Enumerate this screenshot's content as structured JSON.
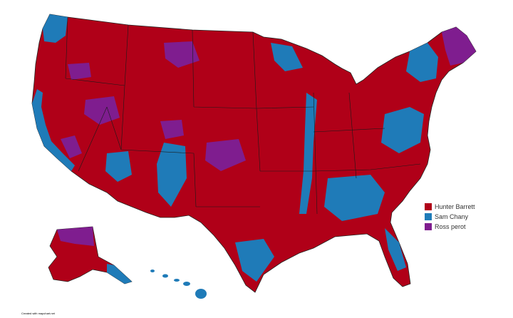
{
  "legend": {
    "items": [
      {
        "label": "Hunter Barrett",
        "color": "#b00018"
      },
      {
        "label": "Sam Chany",
        "color": "#1f7bb8"
      },
      {
        "label": "Ross perot",
        "color": "#7f1d8f"
      }
    ]
  },
  "footer": "Created with mapchart.net"
}
